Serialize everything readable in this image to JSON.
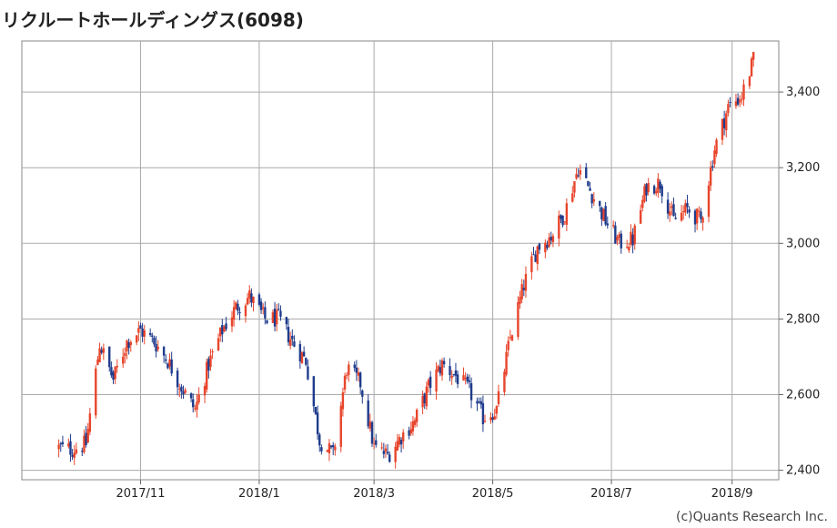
{
  "title": "リクルートホールディングス(6098)",
  "credit": "(c)Quants Research Inc.",
  "chart_data": {
    "type": "candlestick",
    "title": "リクルートホールディングス(6098)",
    "xlabel": "",
    "ylabel": "",
    "ylim": [
      2375,
      3535
    ],
    "grid": true,
    "up_color": "#e8452c",
    "down_color": "#1f3c8c",
    "x_tick_labels": [
      "2017/11",
      "2018/1",
      "2018/3",
      "2018/5",
      "2018/7",
      "2018/9"
    ],
    "y_tick_labels": [
      "2,400",
      "2,600",
      "2,800",
      "3,000",
      "3,200",
      "3,400"
    ],
    "y_ticks": [
      2400,
      2600,
      2800,
      3000,
      3200,
      3400
    ],
    "series": [
      {
        "x": [
          "2017-09-20",
          "2017-09-27",
          "2017-10-04",
          "2017-10-11",
          "2017-10-18",
          "2017-10-25",
          "2017-11-01",
          "2017-11-08",
          "2017-11-15",
          "2017-11-22",
          "2017-11-29",
          "2017-12-06",
          "2017-12-13",
          "2017-12-20",
          "2017-12-27",
          "2018-01-04",
          "2018-01-11",
          "2018-01-18",
          "2018-01-25",
          "2018-02-01",
          "2018-02-08",
          "2018-02-15",
          "2018-02-22",
          "2018-03-01",
          "2018-03-08",
          "2018-03-15",
          "2018-03-22",
          "2018-03-29",
          "2018-04-05",
          "2018-04-12",
          "2018-04-19",
          "2018-04-26",
          "2018-05-03",
          "2018-05-10",
          "2018-05-17",
          "2018-05-24",
          "2018-05-31",
          "2018-06-07",
          "2018-06-14",
          "2018-06-21",
          "2018-06-28",
          "2018-07-05",
          "2018-07-12",
          "2018-07-19",
          "2018-07-26",
          "2018-08-02",
          "2018-08-09",
          "2018-08-16",
          "2018-08-23",
          "2018-08-30",
          "2018-09-06",
          "2018-09-13"
        ],
        "values": [
          2460,
          2455,
          2470,
          2735,
          2640,
          2740,
          2770,
          2740,
          2690,
          2620,
          2560,
          2680,
          2770,
          2830,
          2860,
          2800,
          2800,
          2740,
          2690,
          2480,
          2440,
          2670,
          2630,
          2460,
          2440,
          2490,
          2530,
          2620,
          2680,
          2650,
          2610,
          2540,
          2560,
          2750,
          2890,
          2990,
          3020,
          3080,
          3200,
          3130,
          3060,
          3000,
          3010,
          3150,
          3160,
          3060,
          3090,
          3060,
          3250,
          3360,
          3390,
          3500
        ]
      }
    ]
  }
}
